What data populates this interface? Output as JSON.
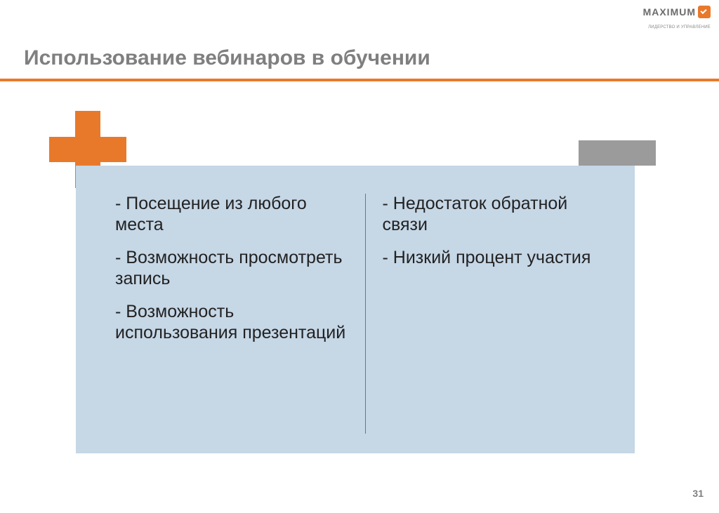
{
  "logo": {
    "text": "MAXIMUM",
    "subtext": "ЛИДЕРСТВО И УПРАВЛЕНИЕ"
  },
  "title": "Использование вебинаров в обучении",
  "colors": {
    "accent": "#e8792b",
    "box_bg": "#c6d7e6",
    "minus": "#9b9b9b",
    "title_color": "#7f7f7f",
    "divider": "#5a7a99"
  },
  "pros": {
    "items": [
      "- Посещение из любого места",
      "- Возможность просмотреть запись",
      "- Возможность использования презентаций"
    ]
  },
  "cons": {
    "items": [
      "- Недостаток обратной связи",
      "- Низкий процент участия"
    ]
  },
  "page_number": "31"
}
